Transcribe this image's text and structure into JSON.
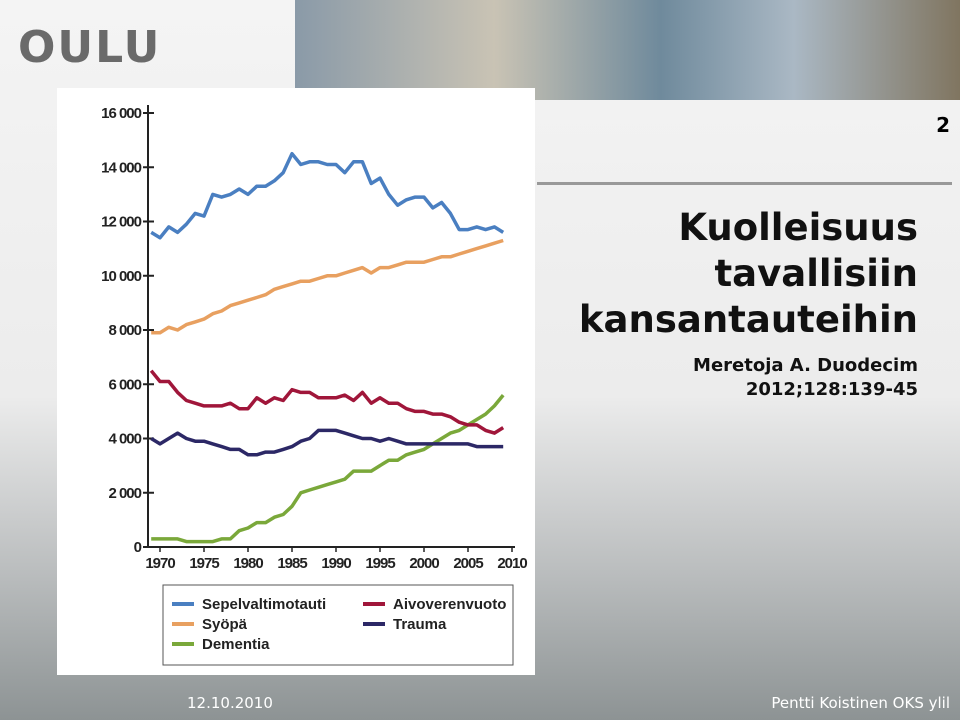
{
  "slide": {
    "logo": "OULU",
    "number": "2",
    "title": [
      "Kuolleisuus",
      "tavallisiin",
      "kansantauteihin"
    ],
    "citation": [
      "Meretoja A. Duodecim",
      "2012;128:139-45"
    ],
    "date": "12.10.2010",
    "footer": "Pentti Koistinen OKS ylil"
  },
  "chart_data": {
    "type": "line",
    "x": [
      1969,
      1970,
      1971,
      1972,
      1973,
      1974,
      1975,
      1976,
      1977,
      1978,
      1979,
      1980,
      1981,
      1982,
      1983,
      1984,
      1985,
      1986,
      1987,
      1988,
      1989,
      1990,
      1991,
      1992,
      1993,
      1994,
      1995,
      1996,
      1997,
      1998,
      1999,
      2000,
      2001,
      2002,
      2003,
      2004,
      2005,
      2006,
      2007,
      2008,
      2009
    ],
    "xlim": [
      1968.5,
      2010
    ],
    "xticks": [
      1970,
      1975,
      1980,
      1985,
      1990,
      1995,
      2000,
      2005,
      2010
    ],
    "ylim": [
      0,
      16000
    ],
    "yticks": [
      0,
      {
        "value": 2000,
        "label": "2 000"
      },
      {
        "value": 4000,
        "label": "4 000"
      },
      {
        "value": 6000,
        "label": "6 000"
      },
      {
        "value": 8000,
        "label": "8 000"
      },
      {
        "value": 10000,
        "label": "10 000"
      },
      {
        "value": 12000,
        "label": "12 000"
      },
      {
        "value": 14000,
        "label": "14 000"
      },
      {
        "value": 16000,
        "label": "16 000"
      }
    ],
    "series": [
      {
        "name": "Sepelvaltimotauti",
        "color": "#4a7fc1",
        "values": [
          11600,
          11400,
          11800,
          11600,
          11900,
          12300,
          12200,
          13000,
          12900,
          13000,
          13200,
          13000,
          13300,
          13300,
          13500,
          13800,
          14500,
          14100,
          14200,
          14200,
          14100,
          14100,
          13800,
          14200,
          14200,
          13400,
          13600,
          13000,
          12600,
          12800,
          12900,
          12900,
          12500,
          12700,
          12300,
          11700,
          11700,
          11800,
          11700,
          11800,
          11600
        ]
      },
      {
        "name": "Syöpä",
        "color": "#e8a060",
        "values": [
          7900,
          7900,
          8100,
          8000,
          8200,
          8300,
          8400,
          8600,
          8700,
          8900,
          9000,
          9100,
          9200,
          9300,
          9500,
          9600,
          9700,
          9800,
          9800,
          9900,
          10000,
          10000,
          10100,
          10200,
          10300,
          10100,
          10300,
          10300,
          10400,
          10500,
          10500,
          10500,
          10600,
          10700,
          10700,
          10800,
          10900,
          11000,
          11100,
          11200,
          11300
        ]
      },
      {
        "name": "Dementia",
        "color": "#7aa83a",
        "values": [
          300,
          300,
          300,
          300,
          200,
          200,
          200,
          200,
          300,
          300,
          600,
          700,
          900,
          900,
          1100,
          1200,
          1500,
          2000,
          2100,
          2200,
          2300,
          2400,
          2500,
          2800,
          2800,
          2800,
          3000,
          3200,
          3200,
          3400,
          3500,
          3600,
          3800,
          4000,
          4200,
          4300,
          4500,
          4700,
          4900,
          5200,
          5600
        ]
      },
      {
        "name": "Aivoverenvuoto",
        "color": "#a0163a",
        "values": [
          6500,
          6100,
          6100,
          5700,
          5400,
          5300,
          5200,
          5200,
          5200,
          5300,
          5100,
          5100,
          5500,
          5300,
          5500,
          5400,
          5800,
          5700,
          5700,
          5500,
          5500,
          5500,
          5600,
          5400,
          5700,
          5300,
          5500,
          5300,
          5300,
          5100,
          5000,
          5000,
          4900,
          4900,
          4800,
          4600,
          4500,
          4500,
          4300,
          4200,
          4400
        ]
      },
      {
        "name": "Trauma",
        "color": "#2c2866",
        "values": [
          4000,
          3800,
          4000,
          4200,
          4000,
          3900,
          3900,
          3800,
          3700,
          3600,
          3600,
          3400,
          3400,
          3500,
          3500,
          3600,
          3700,
          3900,
          4000,
          4300,
          4300,
          4300,
          4200,
          4100,
          4000,
          4000,
          3900,
          4000,
          3900,
          3800,
          3800,
          3800,
          3800,
          3800,
          3800,
          3800,
          3800,
          3700,
          3700,
          3700,
          3700
        ]
      }
    ]
  }
}
